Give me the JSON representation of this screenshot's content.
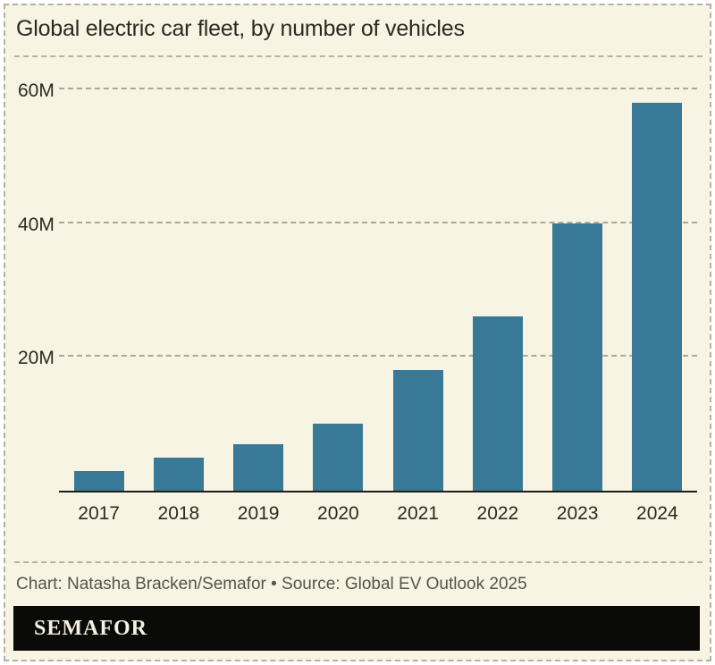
{
  "header": {
    "title": "Global electric car fleet, by number of vehicles"
  },
  "chart_data": {
    "type": "bar",
    "title": "Global electric car fleet, by number of vehicles",
    "categories": [
      "2017",
      "2018",
      "2019",
      "2020",
      "2021",
      "2022",
      "2023",
      "2024"
    ],
    "values": [
      3,
      5,
      7,
      10,
      18,
      26,
      40,
      58
    ],
    "unit": "millions of vehicles",
    "xlabel": "",
    "ylabel": "",
    "ylim": [
      0,
      64
    ],
    "yticks": [
      {
        "value": 20,
        "label": "20M"
      },
      {
        "value": 40,
        "label": "40M"
      },
      {
        "value": 60,
        "label": "60M"
      }
    ],
    "grid": "horizontal-dashed",
    "legend": "none",
    "bar_color": "#377996"
  },
  "footer": {
    "credit_line": "Chart: Natasha Bracken/Semafor  • Source: Global EV Outlook 2025"
  },
  "logo": {
    "text": "SEMAFOR"
  },
  "colors": {
    "background": "#f8f4e3",
    "bar": "#377996",
    "text": "#2b2a21",
    "muted_text": "#55544a",
    "gridline": "#aba893",
    "border": "#b6b2a3",
    "axis": "#1e1e17",
    "logo_bg": "#0a0a08",
    "logo_text": "#f5f1e0"
  }
}
